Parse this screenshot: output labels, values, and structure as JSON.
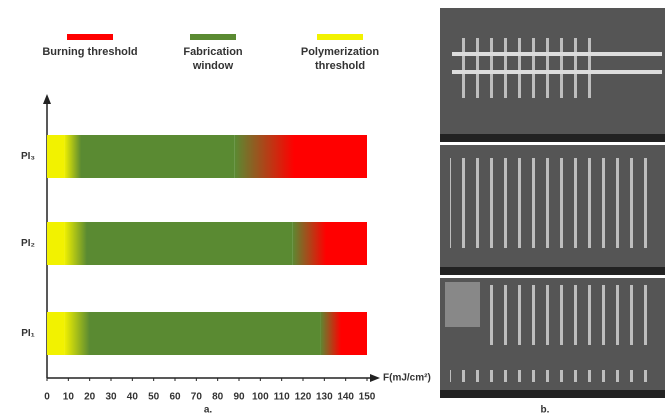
{
  "chart_data": {
    "type": "bar",
    "orientation": "horizontal",
    "stacked": true,
    "categories": [
      "PI₃",
      "PI₂",
      "PI₁"
    ],
    "series": [
      {
        "name": "Polymerization threshold",
        "color": "#f2f200",
        "values": [
          8,
          8,
          8
        ]
      },
      {
        "name": "Fabrication window",
        "color": "#5a8a32",
        "values": [
          80,
          107,
          120
        ]
      },
      {
        "name": "Burning threshold",
        "color": "#ff0000",
        "values": [
          62,
          35,
          22
        ]
      }
    ],
    "legend_order": [
      2,
      1,
      0
    ],
    "xlabel": "F(mJ/cm²)",
    "xlim": [
      0,
      150
    ],
    "xticks": [
      0,
      10,
      20,
      30,
      40,
      50,
      60,
      70,
      80,
      90,
      100,
      110,
      120,
      130,
      140,
      150
    ],
    "panel_labels": [
      "a.",
      "b."
    ]
  }
}
